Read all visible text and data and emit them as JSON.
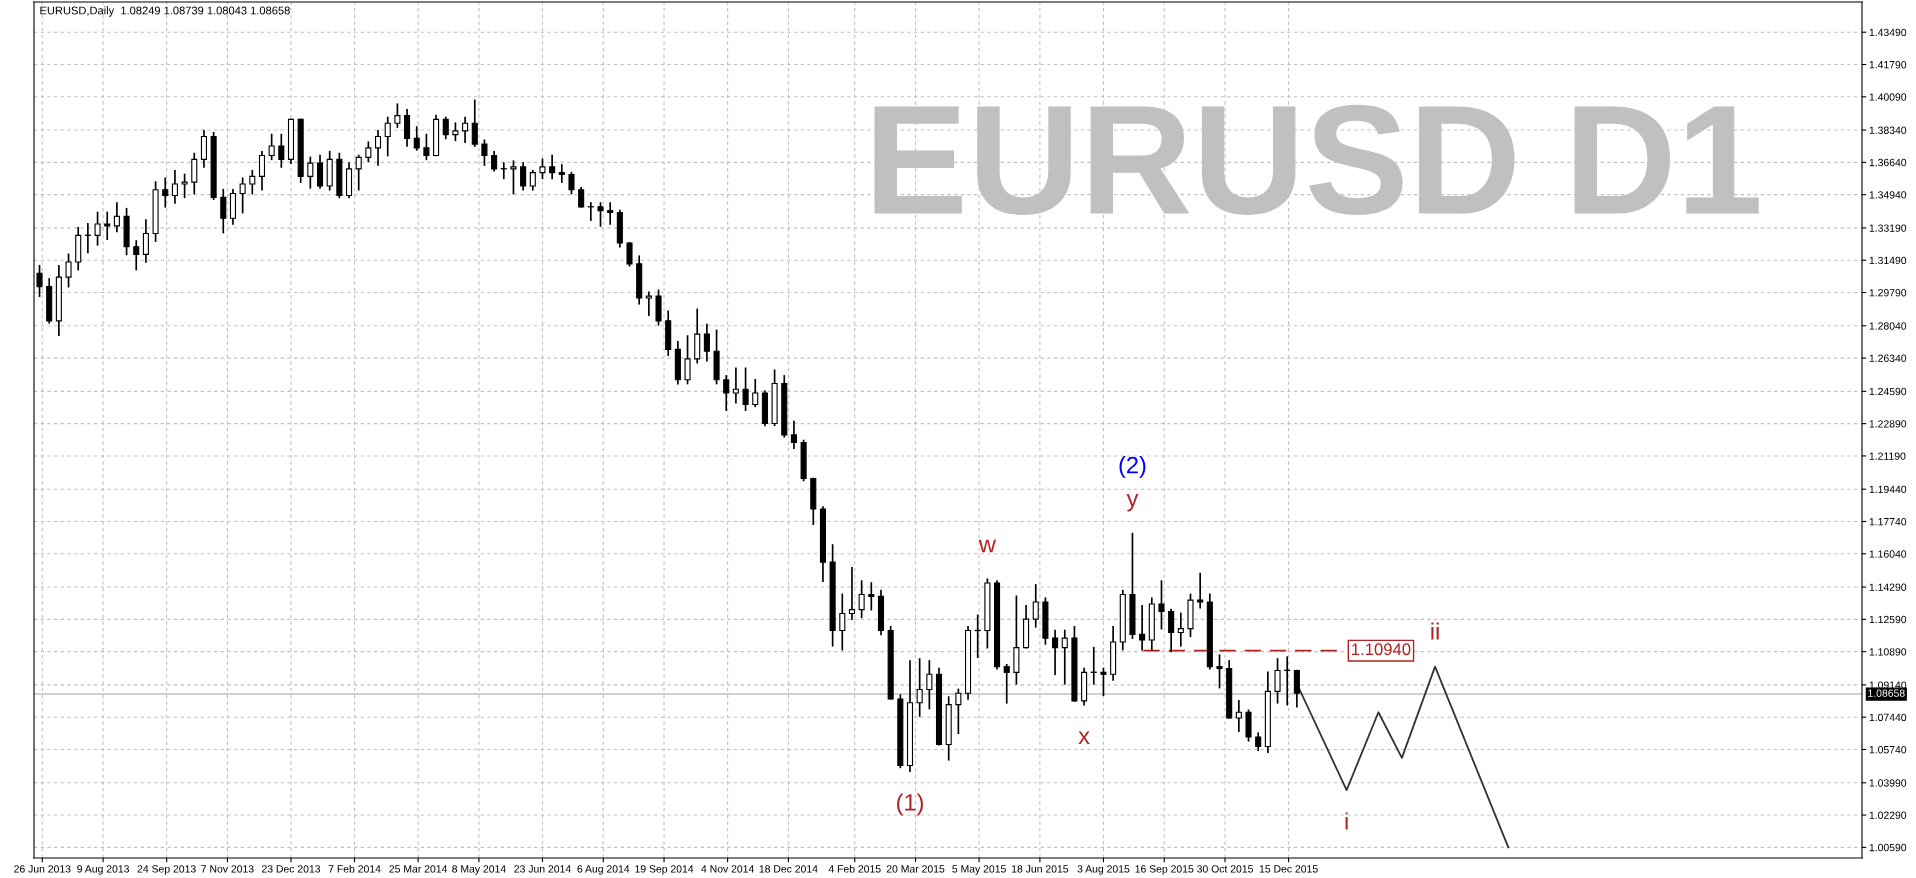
{
  "chart_data": {
    "type": "candlestick",
    "title": "EURUSD,Daily  1.08249 1.08739 1.08043 1.08658",
    "x": [
      "2013-06-24",
      "2013-07-01",
      "2013-07-08",
      "2013-07-15",
      "2013-07-22",
      "2013-07-29",
      "2013-08-05",
      "2013-08-12",
      "2013-08-19",
      "2013-08-26",
      "2013-09-02",
      "2013-09-09",
      "2013-09-16",
      "2013-09-23",
      "2013-09-30",
      "2013-10-07",
      "2013-10-14",
      "2013-10-21",
      "2013-10-28",
      "2013-11-04",
      "2013-11-11",
      "2013-11-18",
      "2013-11-25",
      "2013-12-02",
      "2013-12-09",
      "2013-12-16",
      "2013-12-23",
      "2013-12-30",
      "2014-01-06",
      "2014-01-13",
      "2014-01-20",
      "2014-01-27",
      "2014-02-03",
      "2014-02-10",
      "2014-02-17",
      "2014-02-24",
      "2014-03-03",
      "2014-03-10",
      "2014-03-17",
      "2014-03-24",
      "2014-03-31",
      "2014-04-07",
      "2014-04-14",
      "2014-04-21",
      "2014-04-28",
      "2014-05-05",
      "2014-05-12",
      "2014-05-19",
      "2014-05-26",
      "2014-06-02",
      "2014-06-09",
      "2014-06-16",
      "2014-06-23",
      "2014-06-30",
      "2014-07-07",
      "2014-07-14",
      "2014-07-21",
      "2014-07-28",
      "2014-08-04",
      "2014-08-11",
      "2014-08-18",
      "2014-08-25",
      "2014-09-01",
      "2014-09-08",
      "2014-09-15",
      "2014-09-22",
      "2014-09-29",
      "2014-10-06",
      "2014-10-13",
      "2014-10-20",
      "2014-10-27",
      "2014-11-03",
      "2014-11-10",
      "2014-11-17",
      "2014-11-24",
      "2014-12-01",
      "2014-12-08",
      "2014-12-15",
      "2014-12-22",
      "2014-12-29",
      "2015-01-05",
      "2015-01-12",
      "2015-01-19",
      "2015-01-26",
      "2015-02-02",
      "2015-02-09",
      "2015-02-16",
      "2015-02-23",
      "2015-03-02",
      "2015-03-09",
      "2015-03-16",
      "2015-03-23",
      "2015-03-30",
      "2015-04-06",
      "2015-04-13",
      "2015-04-20",
      "2015-04-27",
      "2015-05-04",
      "2015-05-11",
      "2015-05-18",
      "2015-05-25",
      "2015-06-01",
      "2015-06-08",
      "2015-06-15",
      "2015-06-22",
      "2015-06-29",
      "2015-07-06",
      "2015-07-13",
      "2015-07-20",
      "2015-07-27",
      "2015-08-03",
      "2015-08-10",
      "2015-08-17",
      "2015-08-24",
      "2015-08-31",
      "2015-09-07",
      "2015-09-14",
      "2015-09-21",
      "2015-09-28",
      "2015-10-05",
      "2015-10-12",
      "2015-10-19",
      "2015-10-26",
      "2015-11-02",
      "2015-11-09",
      "2015-11-16",
      "2015-11-23",
      "2015-11-30",
      "2015-12-07",
      "2015-12-14",
      "2015-12-21"
    ],
    "ohlc": [
      [
        1.308,
        1.312,
        1.296,
        1.301
      ],
      [
        1.301,
        1.305,
        1.282,
        1.283
      ],
      [
        1.283,
        1.312,
        1.2755,
        1.306
      ],
      [
        1.306,
        1.318,
        1.301,
        1.314
      ],
      [
        1.314,
        1.332,
        1.31,
        1.328
      ],
      [
        1.328,
        1.334,
        1.319,
        1.328
      ],
      [
        1.328,
        1.34,
        1.323,
        1.334
      ],
      [
        1.334,
        1.34,
        1.326,
        1.333
      ],
      [
        1.333,
        1.345,
        1.33,
        1.338
      ],
      [
        1.338,
        1.342,
        1.318,
        1.322
      ],
      [
        1.322,
        1.325,
        1.31,
        1.318
      ],
      [
        1.318,
        1.336,
        1.314,
        1.329
      ],
      [
        1.329,
        1.356,
        1.325,
        1.352
      ],
      [
        1.352,
        1.358,
        1.343,
        1.349
      ],
      [
        1.349,
        1.362,
        1.345,
        1.355
      ],
      [
        1.355,
        1.36,
        1.348,
        1.356
      ],
      [
        1.356,
        1.371,
        1.35,
        1.368
      ],
      [
        1.368,
        1.383,
        1.364,
        1.38
      ],
      [
        1.38,
        1.382,
        1.347,
        1.348
      ],
      [
        1.348,
        1.352,
        1.3295,
        1.337
      ],
      [
        1.337,
        1.352,
        1.334,
        1.35
      ],
      [
        1.35,
        1.358,
        1.34,
        1.355
      ],
      [
        1.355,
        1.362,
        1.35,
        1.359
      ],
      [
        1.359,
        1.372,
        1.352,
        1.37
      ],
      [
        1.37,
        1.381,
        1.368,
        1.375
      ],
      [
        1.375,
        1.381,
        1.364,
        1.368
      ],
      [
        1.368,
        1.389,
        1.366,
        1.389
      ],
      [
        1.389,
        1.389,
        1.356,
        1.359
      ],
      [
        1.359,
        1.369,
        1.353,
        1.366
      ],
      [
        1.366,
        1.37,
        1.353,
        1.354
      ],
      [
        1.354,
        1.372,
        1.352,
        1.368
      ],
      [
        1.368,
        1.371,
        1.348,
        1.349
      ],
      [
        1.349,
        1.366,
        1.348,
        1.363
      ],
      [
        1.363,
        1.37,
        1.352,
        1.369
      ],
      [
        1.369,
        1.377,
        1.367,
        1.374
      ],
      [
        1.374,
        1.383,
        1.365,
        1.38
      ],
      [
        1.38,
        1.39,
        1.37,
        1.387
      ],
      [
        1.387,
        1.397,
        1.385,
        1.391
      ],
      [
        1.391,
        1.394,
        1.375,
        1.379
      ],
      [
        1.379,
        1.385,
        1.373,
        1.374
      ],
      [
        1.374,
        1.381,
        1.368,
        1.37
      ],
      [
        1.37,
        1.391,
        1.37,
        1.389
      ],
      [
        1.389,
        1.39,
        1.379,
        1.381
      ],
      [
        1.381,
        1.387,
        1.378,
        1.383
      ],
      [
        1.383,
        1.39,
        1.377,
        1.387
      ],
      [
        1.387,
        1.399,
        1.375,
        1.376
      ],
      [
        1.376,
        1.378,
        1.365,
        1.37
      ],
      [
        1.37,
        1.372,
        1.362,
        1.363
      ],
      [
        1.363,
        1.366,
        1.358,
        1.363
      ],
      [
        1.363,
        1.367,
        1.35,
        1.364
      ],
      [
        1.364,
        1.366,
        1.352,
        1.354
      ],
      [
        1.354,
        1.362,
        1.352,
        1.361
      ],
      [
        1.361,
        1.368,
        1.358,
        1.364
      ],
      [
        1.364,
        1.37,
        1.358,
        1.361
      ],
      [
        1.361,
        1.365,
        1.356,
        1.36
      ],
      [
        1.36,
        1.361,
        1.35,
        1.352
      ],
      [
        1.352,
        1.353,
        1.343,
        1.343
      ],
      [
        1.343,
        1.345,
        1.336,
        1.343
      ],
      [
        1.343,
        1.345,
        1.333,
        1.341
      ],
      [
        1.341,
        1.345,
        1.334,
        1.34
      ],
      [
        1.34,
        1.341,
        1.322,
        1.324
      ],
      [
        1.324,
        1.324,
        1.312,
        1.313
      ],
      [
        1.313,
        1.317,
        1.292,
        1.295
      ],
      [
        1.295,
        1.298,
        1.286,
        1.296
      ],
      [
        1.296,
        1.299,
        1.281,
        1.283
      ],
      [
        1.283,
        1.288,
        1.265,
        1.268
      ],
      [
        1.268,
        1.272,
        1.25,
        1.252
      ],
      [
        1.252,
        1.275,
        1.25,
        1.263
      ],
      [
        1.263,
        1.289,
        1.261,
        1.276
      ],
      [
        1.276,
        1.281,
        1.262,
        1.267
      ],
      [
        1.267,
        1.278,
        1.25,
        1.252
      ],
      [
        1.252,
        1.254,
        1.236,
        1.245
      ],
      [
        1.245,
        1.258,
        1.24,
        1.247
      ],
      [
        1.247,
        1.258,
        1.236,
        1.239
      ],
      [
        1.239,
        1.252,
        1.238,
        1.245
      ],
      [
        1.245,
        1.246,
        1.228,
        1.229
      ],
      [
        1.229,
        1.257,
        1.228,
        1.25
      ],
      [
        1.25,
        1.254,
        1.222,
        1.223
      ],
      [
        1.223,
        1.23,
        1.216,
        1.219
      ],
      [
        1.219,
        1.22,
        1.199,
        1.2
      ],
      [
        1.2,
        1.2,
        1.176,
        1.184
      ],
      [
        1.184,
        1.185,
        1.146,
        1.156
      ],
      [
        1.156,
        1.165,
        1.112,
        1.12
      ],
      [
        1.12,
        1.139,
        1.11,
        1.129
      ],
      [
        1.129,
        1.153,
        1.126,
        1.131
      ],
      [
        1.131,
        1.146,
        1.127,
        1.139
      ],
      [
        1.139,
        1.145,
        1.131,
        1.138
      ],
      [
        1.138,
        1.141,
        1.118,
        1.12
      ],
      [
        1.12,
        1.122,
        1.084,
        1.084
      ],
      [
        1.084,
        1.086,
        1.048,
        1.049
      ],
      [
        1.049,
        1.104,
        1.046,
        1.082
      ],
      [
        1.082,
        1.105,
        1.075,
        1.089
      ],
      [
        1.089,
        1.104,
        1.079,
        1.097
      ],
      [
        1.097,
        1.1,
        1.06,
        1.06
      ],
      [
        1.06,
        1.085,
        1.052,
        1.081
      ],
      [
        1.081,
        1.089,
        1.066,
        1.087
      ],
      [
        1.087,
        1.122,
        1.084,
        1.12
      ],
      [
        1.12,
        1.128,
        1.106,
        1.12
      ],
      [
        1.12,
        1.147,
        1.111,
        1.145
      ],
      [
        1.145,
        1.146,
        1.1,
        1.101
      ],
      [
        1.101,
        1.102,
        1.082,
        1.098
      ],
      [
        1.098,
        1.138,
        1.092,
        1.111
      ],
      [
        1.111,
        1.133,
        1.111,
        1.126
      ],
      [
        1.126,
        1.144,
        1.122,
        1.135
      ],
      [
        1.135,
        1.137,
        1.113,
        1.116
      ],
      [
        1.116,
        1.12,
        1.097,
        1.111
      ],
      [
        1.111,
        1.12,
        1.092,
        1.116
      ],
      [
        1.116,
        1.122,
        1.083,
        1.083
      ],
      [
        1.083,
        1.1,
        1.081,
        1.098
      ],
      [
        1.098,
        1.111,
        1.092,
        1.098
      ],
      [
        1.098,
        1.1,
        1.086,
        1.097
      ],
      [
        1.097,
        1.122,
        1.094,
        1.114
      ],
      [
        1.114,
        1.141,
        1.11,
        1.139
      ],
      [
        1.139,
        1.171,
        1.116,
        1.118
      ],
      [
        1.118,
        1.133,
        1.11,
        1.115
      ],
      [
        1.115,
        1.137,
        1.11,
        1.134
      ],
      [
        1.134,
        1.146,
        1.121,
        1.13
      ],
      [
        1.13,
        1.131,
        1.109,
        1.119
      ],
      [
        1.119,
        1.129,
        1.112,
        1.121
      ],
      [
        1.121,
        1.139,
        1.117,
        1.136
      ],
      [
        1.136,
        1.15,
        1.132,
        1.135
      ],
      [
        1.135,
        1.139,
        1.1,
        1.101
      ],
      [
        1.101,
        1.107,
        1.09,
        1.1
      ],
      [
        1.1,
        1.104,
        1.074,
        1.074
      ],
      [
        1.074,
        1.083,
        1.067,
        1.077
      ],
      [
        1.077,
        1.078,
        1.062,
        1.064
      ],
      [
        1.064,
        1.066,
        1.057,
        1.059
      ],
      [
        1.059,
        1.098,
        1.056,
        1.088
      ],
      [
        1.088,
        1.105,
        1.082,
        1.099
      ],
      [
        1.099,
        1.106,
        1.081,
        1.099
      ],
      [
        1.099,
        1.099,
        1.08,
        1.087
      ]
    ],
    "series": [
      {
        "type": "line",
        "color": "#333333",
        "x": [
          "2015-12-21",
          "2016-01-26",
          "2016-02-18",
          "2016-03-06",
          "2016-03-30",
          "2016-05-22"
        ],
        "values": [
          1.092,
          1.036,
          1.077,
          1.053,
          1.101,
          1.0059
        ]
      },
      {
        "type": "line",
        "name": "1.10940",
        "color": "#b22222",
        "line_style": "dashed",
        "x": [
          "2015-09-01",
          "2016-01-23"
        ],
        "values": [
          1.1094,
          1.1094
        ]
      }
    ],
    "xlim": [
      "2013-06-20",
      "2017-02-02"
    ],
    "xticks": [
      {
        "value": "2013-06-26",
        "label": "26 Jun 2013"
      },
      {
        "value": "2013-08-09",
        "label": "9 Aug 2013"
      },
      {
        "value": "2013-09-24",
        "label": "24 Sep 2013"
      },
      {
        "value": "2013-11-07",
        "label": "7 Nov 2013"
      },
      {
        "value": "2013-12-23",
        "label": "23 Dec 2013"
      },
      {
        "value": "2014-02-07",
        "label": "7 Feb 2014"
      },
      {
        "value": "2014-03-25",
        "label": "25 Mar 2014"
      },
      {
        "value": "2014-05-08",
        "label": "8 May 2014"
      },
      {
        "value": "2014-06-23",
        "label": "23 Jun 2014"
      },
      {
        "value": "2014-08-06",
        "label": "6 Aug 2014"
      },
      {
        "value": "2014-09-19",
        "label": "19 Sep 2014"
      },
      {
        "value": "2014-11-04",
        "label": "4 Nov 2014"
      },
      {
        "value": "2014-12-18",
        "label": "18 Dec 2014"
      },
      {
        "value": "2015-02-04",
        "label": "4 Feb 2015"
      },
      {
        "value": "2015-03-20",
        "label": "20 Mar 2015"
      },
      {
        "value": "2015-05-05",
        "label": "5 May 2015"
      },
      {
        "value": "2015-06-18",
        "label": "18 Jun 2015"
      },
      {
        "value": "2015-08-03",
        "label": "3 Aug 2015"
      },
      {
        "value": "2015-09-16",
        "label": "16 Sep 2015"
      },
      {
        "value": "2015-10-30",
        "label": "30 Oct 2015"
      },
      {
        "value": "2015-12-15",
        "label": "15 Dec 2015"
      }
    ],
    "ylim": [
      1.0003,
      1.4508
    ],
    "yticks": [
      {
        "value": 1.4349,
        "label": "1.43490"
      },
      {
        "value": 1.4179,
        "label": "1.41790"
      },
      {
        "value": 1.4009,
        "label": "1.40090"
      },
      {
        "value": 1.3834,
        "label": "1.38340"
      },
      {
        "value": 1.3664,
        "label": "1.36640"
      },
      {
        "value": 1.3494,
        "label": "1.34940"
      },
      {
        "value": 1.3319,
        "label": "1.33190"
      },
      {
        "value": 1.3149,
        "label": "1.31490"
      },
      {
        "value": 1.2979,
        "label": "1.29790"
      },
      {
        "value": 1.2804,
        "label": "1.28040"
      },
      {
        "value": 1.2634,
        "label": "1.26340"
      },
      {
        "value": 1.2459,
        "label": "1.24590"
      },
      {
        "value": 1.2289,
        "label": "1.22890"
      },
      {
        "value": 1.2119,
        "label": "1.21190"
      },
      {
        "value": 1.1944,
        "label": "1.19440"
      },
      {
        "value": 1.1774,
        "label": "1.17740"
      },
      {
        "value": 1.1604,
        "label": "1.16040"
      },
      {
        "value": 1.1429,
        "label": "1.14290"
      },
      {
        "value": 1.1259,
        "label": "1.12590"
      },
      {
        "value": 1.1089,
        "label": "1.10890"
      },
      {
        "value": 1.0914,
        "label": "1.09140"
      },
      {
        "value": 1.0744,
        "label": "1.07440"
      },
      {
        "value": 1.0574,
        "label": "1.05740"
      },
      {
        "value": 1.0399,
        "label": "1.03990"
      },
      {
        "value": 1.0229,
        "label": "1.02290"
      },
      {
        "value": 1.0059,
        "label": "1.00590"
      }
    ],
    "ref_lines": [
      {
        "axis": "y",
        "value": 1.08658,
        "label": "1.08658",
        "color": "#c0c0c0"
      }
    ],
    "grid": true,
    "annotations": [
      "EURUSD D1",
      {
        "text": "(1)",
        "x": "2015-03-16",
        "y": 1.046
      },
      {
        "text": "w",
        "x": "2015-05-11",
        "y": 1.147
      },
      {
        "text": "x",
        "x": "2015-07-20",
        "y": 1.081
      },
      {
        "text": "y",
        "x": "2015-08-24",
        "y": 1.171
      },
      {
        "text": "(2)",
        "x": "2015-08-24",
        "y": 1.171
      },
      {
        "text": "i",
        "x": "2016-01-26",
        "y": 1.036
      },
      {
        "text": "ii",
        "x": "2016-03-30",
        "y": 1.101
      }
    ]
  }
}
